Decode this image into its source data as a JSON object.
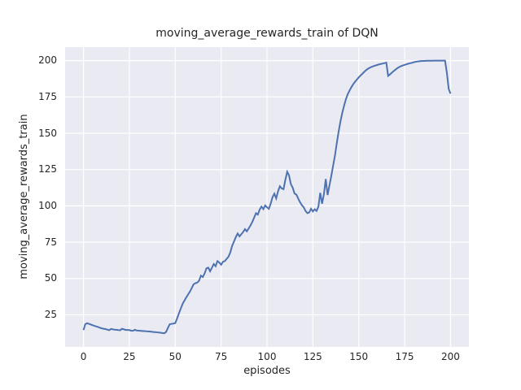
{
  "chart_data": {
    "type": "line",
    "title": "moving_average_rewards_train of DQN",
    "xlabel": "episodes",
    "ylabel": "moving_average_rewards_train",
    "x_ticks": [
      0,
      25,
      50,
      75,
      100,
      125,
      150,
      175,
      200
    ],
    "y_ticks": [
      25,
      50,
      75,
      100,
      125,
      150,
      175,
      200
    ],
    "xlim": [
      -10,
      210
    ],
    "ylim": [
      2.9,
      209.3
    ],
    "grid": true,
    "legend_position": "none",
    "style": {
      "line_color": "#4c72b0",
      "axes_background": "#eaeaf2",
      "grid_color": "#ffffff",
      "figure_background": "#ffffff",
      "text_color": "#262626"
    },
    "series": [
      {
        "name": "moving_average_rewards_train",
        "points": [
          [
            0,
            14.5
          ],
          [
            1,
            18.6
          ],
          [
            2,
            19.2
          ],
          [
            3,
            18.8
          ],
          [
            4,
            18.3
          ],
          [
            5,
            17.8
          ],
          [
            6,
            17.4
          ],
          [
            7,
            17.0
          ],
          [
            8,
            16.6
          ],
          [
            9,
            16.1
          ],
          [
            10,
            15.7
          ],
          [
            11,
            15.4
          ],
          [
            12,
            15.2
          ],
          [
            13,
            14.8
          ],
          [
            14,
            14.4
          ],
          [
            15,
            15.3
          ],
          [
            16,
            15.0
          ],
          [
            17,
            14.8
          ],
          [
            18,
            14.7
          ],
          [
            19,
            14.5
          ],
          [
            20,
            14.4
          ],
          [
            21,
            15.4
          ],
          [
            22,
            15.0
          ],
          [
            23,
            14.6
          ],
          [
            24,
            14.6
          ],
          [
            25,
            14.5
          ],
          [
            26,
            14.1
          ],
          [
            27,
            14.0
          ],
          [
            28,
            14.7
          ],
          [
            29,
            14.2
          ],
          [
            30,
            14.1
          ],
          [
            31,
            14.0
          ],
          [
            32,
            13.9
          ],
          [
            33,
            13.8
          ],
          [
            34,
            13.7
          ],
          [
            35,
            13.6
          ],
          [
            36,
            13.5
          ],
          [
            37,
            13.4
          ],
          [
            38,
            13.2
          ],
          [
            39,
            13.1
          ],
          [
            40,
            13.0
          ],
          [
            41,
            12.8
          ],
          [
            42,
            12.7
          ],
          [
            43,
            12.5
          ],
          [
            44,
            12.3
          ],
          [
            45,
            13.2
          ],
          [
            46,
            16.0
          ],
          [
            47,
            18.5
          ],
          [
            48,
            18.8
          ],
          [
            49,
            19.0
          ],
          [
            50,
            19.3
          ],
          [
            51,
            22.5
          ],
          [
            52,
            26.0
          ],
          [
            53,
            29.3
          ],
          [
            54,
            32.5
          ],
          [
            55,
            34.8
          ],
          [
            56,
            37.0
          ],
          [
            57,
            39.0
          ],
          [
            58,
            41.0
          ],
          [
            59,
            43.5
          ],
          [
            60,
            46.0
          ],
          [
            61,
            46.8
          ],
          [
            62,
            47.2
          ],
          [
            63,
            48.5
          ],
          [
            64,
            52.0
          ],
          [
            65,
            51.0
          ],
          [
            66,
            53.5
          ],
          [
            67,
            57.0
          ],
          [
            68,
            57.5
          ],
          [
            69,
            55.0
          ],
          [
            70,
            57.5
          ],
          [
            71,
            60.0
          ],
          [
            72,
            58.5
          ],
          [
            73,
            62.0
          ],
          [
            74,
            61.0
          ],
          [
            75,
            59.5
          ],
          [
            76,
            61.5
          ],
          [
            77,
            62.0
          ],
          [
            78,
            63.5
          ],
          [
            79,
            65.0
          ],
          [
            80,
            68.0
          ],
          [
            81,
            72.5
          ],
          [
            82,
            75.5
          ],
          [
            83,
            78.5
          ],
          [
            84,
            81.0
          ],
          [
            85,
            79.0
          ],
          [
            86,
            80.5
          ],
          [
            87,
            82.0
          ],
          [
            88,
            84.0
          ],
          [
            89,
            82.5
          ],
          [
            90,
            84.5
          ],
          [
            91,
            86.5
          ],
          [
            92,
            89.0
          ],
          [
            93,
            92.0
          ],
          [
            94,
            95.0
          ],
          [
            95,
            94.0
          ],
          [
            96,
            97.5
          ],
          [
            97,
            99.5
          ],
          [
            98,
            97.8
          ],
          [
            99,
            100.3
          ],
          [
            100,
            99.0
          ],
          [
            101,
            98.0
          ],
          [
            102,
            101.5
          ],
          [
            103,
            106.0
          ],
          [
            104,
            108.4
          ],
          [
            105,
            105.2
          ],
          [
            106,
            110.0
          ],
          [
            107,
            113.5
          ],
          [
            108,
            112.0
          ],
          [
            109,
            111.5
          ],
          [
            110,
            118.0
          ],
          [
            111,
            123.5
          ],
          [
            112,
            121.0
          ],
          [
            113,
            115.0
          ],
          [
            114,
            112.5
          ],
          [
            115,
            108.5
          ],
          [
            116,
            107.8
          ],
          [
            117,
            105.0
          ],
          [
            118,
            102.5
          ],
          [
            119,
            100.5
          ],
          [
            120,
            99.0
          ],
          [
            121,
            96.5
          ],
          [
            122,
            95.0
          ],
          [
            123,
            95.5
          ],
          [
            124,
            98.0
          ],
          [
            125,
            96.2
          ],
          [
            126,
            97.7
          ],
          [
            127,
            96.5
          ],
          [
            128,
            99.5
          ],
          [
            129,
            109.0
          ],
          [
            130,
            101.5
          ],
          [
            131,
            108.0
          ],
          [
            132,
            118.5
          ],
          [
            133,
            107.5
          ],
          [
            134,
            114.0
          ],
          [
            135,
            120.5
          ],
          [
            136,
            127.5
          ],
          [
            137,
            134.5
          ],
          [
            138,
            143.0
          ],
          [
            139,
            151.0
          ],
          [
            140,
            158.0
          ],
          [
            141,
            164.0
          ],
          [
            142,
            169.0
          ],
          [
            143,
            173.5
          ],
          [
            144,
            177.0
          ],
          [
            145,
            179.5
          ],
          [
            146,
            181.8
          ],
          [
            147,
            183.8
          ],
          [
            148,
            185.5
          ],
          [
            149,
            187.0
          ],
          [
            150,
            188.5
          ],
          [
            151,
            189.8
          ],
          [
            152,
            191.0
          ],
          [
            153,
            192.3
          ],
          [
            154,
            193.5
          ],
          [
            155,
            194.4
          ],
          [
            156,
            195.1
          ],
          [
            157,
            195.7
          ],
          [
            158,
            196.2
          ],
          [
            159,
            196.6
          ],
          [
            160,
            197.0
          ],
          [
            161,
            197.4
          ],
          [
            162,
            197.7
          ],
          [
            163,
            198.0
          ],
          [
            164,
            198.3
          ],
          [
            165,
            198.6
          ],
          [
            166,
            189.5
          ],
          [
            167,
            190.5
          ],
          [
            168,
            191.7
          ],
          [
            169,
            192.8
          ],
          [
            170,
            193.8
          ],
          [
            171,
            194.8
          ],
          [
            172,
            195.6
          ],
          [
            173,
            196.2
          ],
          [
            174,
            196.7
          ],
          [
            175,
            197.1
          ],
          [
            176,
            197.5
          ],
          [
            177,
            197.9
          ],
          [
            178,
            198.2
          ],
          [
            179,
            198.5
          ],
          [
            180,
            198.9
          ],
          [
            181,
            199.2
          ],
          [
            182,
            199.4
          ],
          [
            183,
            199.6
          ],
          [
            184,
            199.7
          ],
          [
            185,
            199.8
          ],
          [
            186,
            199.8
          ],
          [
            187,
            199.9
          ],
          [
            188,
            199.9
          ],
          [
            189,
            199.9
          ],
          [
            190,
            199.9
          ],
          [
            191,
            200.0
          ],
          [
            192,
            200.0
          ],
          [
            193,
            200.0
          ],
          [
            194,
            200.0
          ],
          [
            195,
            200.0
          ],
          [
            196,
            200.0
          ],
          [
            197,
            200.0
          ],
          [
            198,
            191.5
          ],
          [
            199,
            180.5
          ],
          [
            200,
            177.3
          ]
        ]
      }
    ]
  }
}
